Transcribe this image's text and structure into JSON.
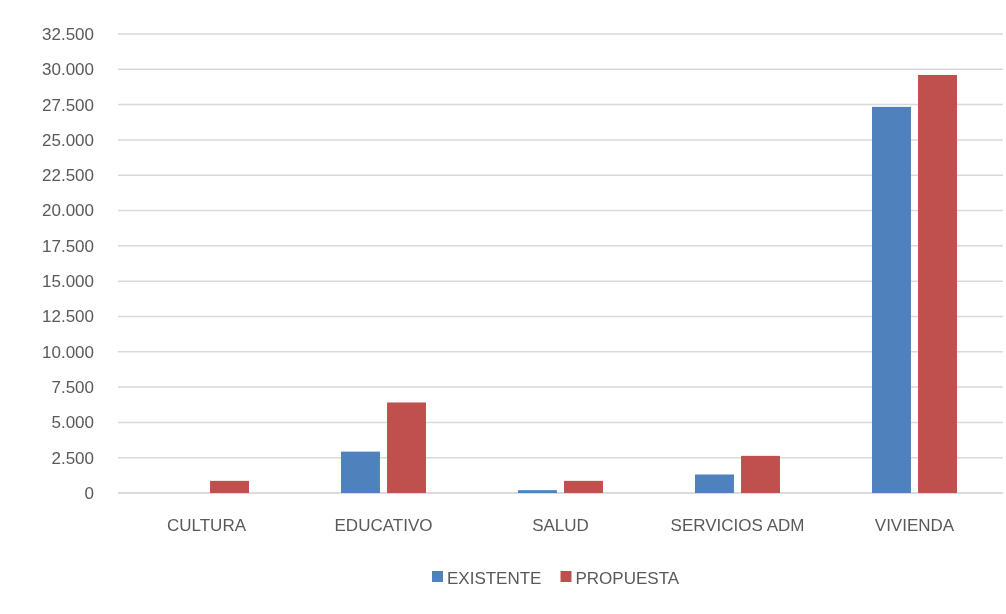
{
  "chart_data": {
    "type": "bar",
    "categories": [
      "CULTURA",
      "EDUCATIVO",
      "SALUD",
      "SERVICIOS ADM",
      "VIVIENDA"
    ],
    "series": [
      {
        "name": "EXISTENTE",
        "color": "#4f81bd",
        "values": [
          0,
          2930,
          200,
          1310,
          27340
        ]
      },
      {
        "name": "PROPUESTA",
        "color": "#c0504d",
        "values": [
          860,
          6410,
          860,
          2630,
          29600
        ]
      }
    ],
    "ylim": [
      0,
      32500
    ],
    "yticks": [
      0,
      {
        "value": 2500,
        "label": "2.500"
      },
      {
        "value": 5000,
        "label": "5.000"
      },
      {
        "value": 7500,
        "label": "7.500"
      },
      {
        "value": 10000,
        "label": "10.000"
      },
      {
        "value": 12500,
        "label": "12.500"
      },
      {
        "value": 15000,
        "label": "15.000"
      },
      {
        "value": 17500,
        "label": "17.500"
      },
      {
        "value": 20000,
        "label": "20.000"
      },
      {
        "value": 22500,
        "label": "22.500"
      },
      {
        "value": 25000,
        "label": "25.000"
      },
      {
        "value": 27500,
        "label": "27.500"
      },
      {
        "value": 30000,
        "label": "30.000"
      },
      {
        "value": 32500,
        "label": "32.500"
      }
    ],
    "grid": "y",
    "legend": "bottom"
  }
}
